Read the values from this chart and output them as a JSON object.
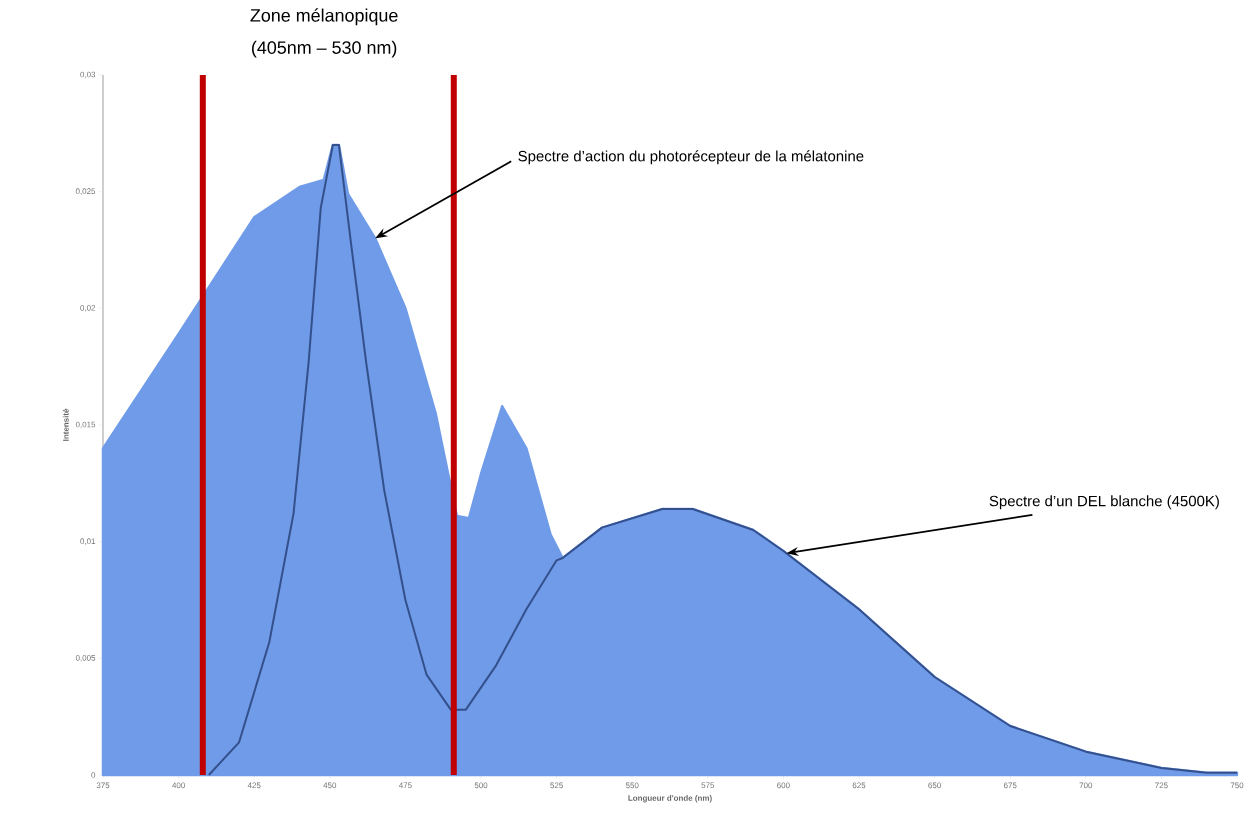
{
  "chart_data": {
    "type": "area",
    "title": "Zone mélanopique",
    "subtitle": "(405nm – 530 nm)",
    "xlabel": "Longueur d'onde (nm)",
    "ylabel": "Intensité",
    "xlim": [
      375,
      750
    ],
    "ylim": [
      0,
      0.03
    ],
    "xticks": [
      375,
      400,
      425,
      450,
      475,
      500,
      525,
      550,
      575,
      600,
      625,
      650,
      675,
      700,
      725,
      750
    ],
    "yticks": [
      0,
      {
        "value": 0.005,
        "label": "0,005"
      },
      {
        "value": 0.01,
        "label": "0,01"
      },
      {
        "value": 0.015,
        "label": "0,015"
      },
      {
        "value": 0.02,
        "label": "0,02"
      },
      {
        "value": 0.025,
        "label": "0,025"
      },
      {
        "value": 0.03,
        "label": "0,03"
      }
    ],
    "series": [
      {
        "color": "#6f9be8",
        "x": [
          375,
          400,
          425,
          440,
          448,
          451,
          453,
          456,
          465,
          475,
          485,
          492,
          496,
          500,
          507,
          515,
          523,
          527,
          540,
          560,
          570,
          590,
          600,
          625,
          650,
          675,
          700,
          725,
          740,
          750
        ],
        "values": [
          0.014,
          0.0189,
          0.0239,
          0.0252,
          0.0255,
          0.027,
          0.027,
          0.0249,
          0.023,
          0.02,
          0.0155,
          0.0111,
          0.011,
          0.0129,
          0.0158,
          0.014,
          0.0103,
          0.0093,
          0.0106,
          0.0114,
          0.0114,
          0.0105,
          0.0096,
          0.0071,
          0.0042,
          0.0021,
          0.001,
          0.0003,
          0.0001,
          0.0001
        ]
      },
      {
        "type": "line",
        "color": "#34508c",
        "x": [
          410,
          420,
          430,
          438,
          443,
          447,
          451,
          453,
          457,
          462,
          468,
          475,
          482,
          490,
          495,
          505,
          515,
          525,
          527,
          540,
          560,
          570,
          590,
          600,
          625,
          650,
          675,
          700,
          725,
          740,
          750
        ],
        "values": [
          0,
          0.0014,
          0.0057,
          0.0112,
          0.0177,
          0.0243,
          0.027,
          0.027,
          0.0228,
          0.0177,
          0.0122,
          0.0075,
          0.0043,
          0.0028,
          0.0028,
          0.0047,
          0.0071,
          0.0092,
          0.0093,
          0.0106,
          0.0114,
          0.0114,
          0.0105,
          0.0096,
          0.0071,
          0.0042,
          0.0021,
          0.001,
          0.0003,
          0.0001,
          0.0001
        ]
      }
    ],
    "ref_lines": [
      {
        "axis": "x",
        "value": 408,
        "color": "#c00000"
      },
      {
        "axis": "x",
        "value": 491,
        "color": "#c00000"
      }
    ],
    "annotations": [
      {
        "text": "Spectre d’action du photorécepteur de la mélatonine",
        "x": 465,
        "y": 0.023
      },
      {
        "text": "Spectre d’un DEL blanche (4500K)",
        "x": 601,
        "y": 0.0095
      }
    ],
    "grid": false
  }
}
